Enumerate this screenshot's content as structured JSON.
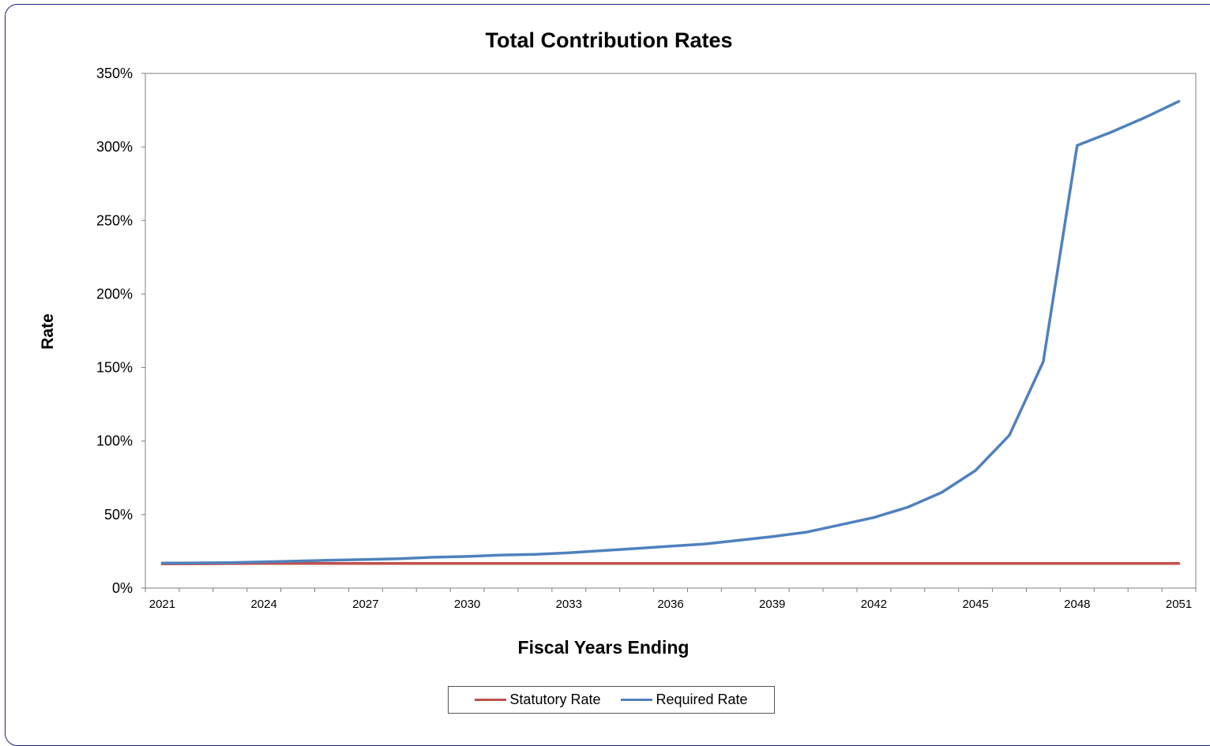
{
  "chart_data": {
    "type": "line",
    "title": "Total Contribution Rates",
    "xlabel": "Fiscal Years Ending",
    "ylabel": "Rate",
    "x": [
      2021,
      2022,
      2023,
      2024,
      2025,
      2026,
      2027,
      2028,
      2029,
      2030,
      2031,
      2032,
      2033,
      2034,
      2035,
      2036,
      2037,
      2038,
      2039,
      2040,
      2041,
      2042,
      2043,
      2044,
      2045,
      2046,
      2047,
      2048,
      2049,
      2050,
      2051
    ],
    "x_tick_labels": [
      "2021",
      "2024",
      "2027",
      "2030",
      "2033",
      "2036",
      "2039",
      "2042",
      "2045",
      "2048",
      "2051"
    ],
    "y_tick_labels": [
      "0%",
      "50%",
      "100%",
      "150%",
      "200%",
      "250%",
      "300%",
      "350%"
    ],
    "ylim": [
      0,
      350
    ],
    "y_unit": "%",
    "grid": false,
    "legend_position": "bottom",
    "series": [
      {
        "name": "Statutory Rate",
        "color": "#c0504d",
        "values": [
          16.5,
          16.6,
          16.7,
          16.8,
          16.8,
          16.8,
          16.8,
          16.8,
          16.8,
          16.8,
          16.8,
          16.8,
          16.8,
          16.8,
          16.8,
          16.8,
          16.8,
          16.8,
          16.8,
          16.8,
          16.8,
          16.8,
          16.8,
          16.8,
          16.8,
          16.8,
          16.8,
          16.8,
          16.8,
          16.8,
          16.8
        ]
      },
      {
        "name": "Required Rate",
        "color": "#4f81bd",
        "values": [
          17.0,
          17.1,
          17.3,
          17.8,
          18.4,
          19.0,
          19.5,
          20.0,
          21.0,
          21.5,
          22.5,
          23.0,
          24.0,
          25.5,
          27.0,
          28.5,
          30.0,
          32.5,
          35.0,
          38.0,
          43.0,
          48.0,
          55.0,
          65.0,
          80.0,
          104.0,
          154.0,
          301.0,
          310.0,
          320.0,
          331.0
        ]
      }
    ]
  }
}
